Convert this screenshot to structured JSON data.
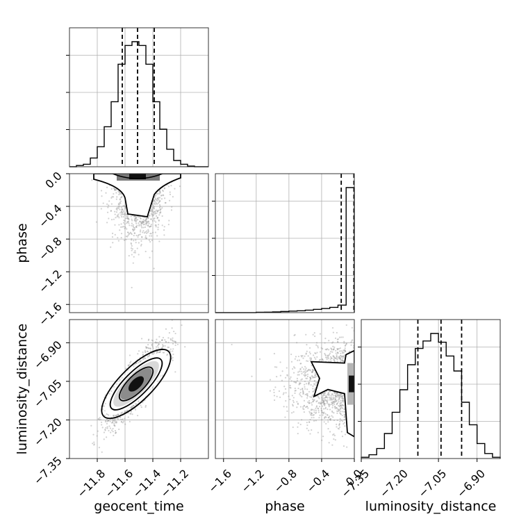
{
  "chart_data": {
    "type": "corner",
    "grid": true,
    "parameters": [
      "geocent_time",
      "phase",
      "luminosity_distance"
    ],
    "xlabels": {
      "geocent_time": "geocent_time",
      "phase": "phase",
      "luminosity_distance": "luminosity_distance"
    },
    "ylabels": {
      "phase": "phase",
      "luminosity_distance": "luminosity_distance"
    },
    "ranges": {
      "geocent_time": [
        -12.0,
        -11.0
      ],
      "phase": [
        -1.7,
        0.0
      ],
      "luminosity_distance": [
        -7.35,
        -6.81
      ]
    },
    "ticks": {
      "geocent_time": [
        -11.8,
        -11.6,
        -11.4,
        -11.2
      ],
      "phase": [
        -1.6,
        -1.2,
        -0.8,
        -0.4,
        0.0
      ],
      "luminosity_distance": [
        -7.35,
        -7.2,
        -7.05,
        -6.9
      ]
    },
    "tick_labels": {
      "geocent_time": [
        "−11.8",
        "−11.6",
        "−11.4",
        "−11.2"
      ],
      "phase": [
        "−1.6",
        "−1.2",
        "−0.8",
        "−0.4",
        "0.0"
      ],
      "luminosity_distance": [
        "−7.35",
        "−7.20",
        "−7.05",
        "−6.90"
      ]
    },
    "quantiles": {
      "geocent_time": [
        -11.62,
        -11.51,
        -11.39
      ],
      "phase": [
        -0.16,
        -0.005
      ],
      "luminosity_distance": [
        -7.13,
        -7.04,
        -6.96
      ]
    },
    "histograms": {
      "geocent_time": {
        "edges": [
          -12.0,
          -11.95,
          -11.9,
          -11.85,
          -11.8,
          -11.75,
          -11.7,
          -11.65,
          -11.6,
          -11.55,
          -11.5,
          -11.45,
          -11.4,
          -11.35,
          -11.3,
          -11.25,
          -11.2,
          -11.15,
          -11.1,
          -11.05,
          -11.0
        ],
        "counts": [
          0,
          1,
          2,
          7,
          16,
          32,
          52,
          82,
          97,
          100,
          97,
          82,
          52,
          30,
          14,
          5,
          2,
          0.5,
          0,
          0
        ]
      },
      "phase": {
        "edges": [
          -1.7,
          -1.6,
          -1.5,
          -1.4,
          -1.3,
          -1.2,
          -1.1,
          -1.0,
          -0.9,
          -0.8,
          -0.7,
          -0.6,
          -0.5,
          -0.4,
          -0.3,
          -0.2,
          -0.1,
          0.0
        ],
        "counts": [
          0,
          0,
          0,
          0,
          0,
          0.3,
          0.4,
          0.6,
          0.9,
          1.2,
          1.5,
          2.0,
          2.6,
          3.3,
          4.2,
          6.0,
          100
        ]
      },
      "luminosity_distance": {
        "edges": [
          -7.35,
          -7.32,
          -7.29,
          -7.26,
          -7.23,
          -7.2,
          -7.17,
          -7.14,
          -7.11,
          -7.08,
          -7.05,
          -7.02,
          -6.99,
          -6.96,
          -6.93,
          -6.9,
          -6.87,
          -6.84,
          -6.81
        ],
        "counts": [
          1,
          3,
          8,
          20,
          37,
          55,
          75,
          88,
          94,
          100,
          93,
          82,
          70,
          45,
          27,
          12,
          4,
          1
        ]
      }
    },
    "pairs": [
      {
        "x": "geocent_time",
        "y": "phase",
        "corr": 0.0,
        "spread": [
          0.09,
          0.28
        ],
        "center": [
          -11.5,
          -0.35
        ]
      },
      {
        "x": "geocent_time",
        "y": "luminosity_distance",
        "corr": 0.85,
        "spread": [
          0.11,
          0.08
        ],
        "center": [
          -11.52,
          -7.06
        ]
      },
      {
        "x": "phase",
        "y": "luminosity_distance",
        "corr": 0.0,
        "spread": [
          0.28,
          0.08
        ],
        "center": [
          -0.3,
          -7.06
        ]
      }
    ],
    "contour_levels": [
      "0.5σ",
      "1σ",
      "1.5σ",
      "2σ"
    ],
    "colors": {
      "line": "#000000",
      "points": "#9a9a9a",
      "density": "#000000"
    }
  }
}
